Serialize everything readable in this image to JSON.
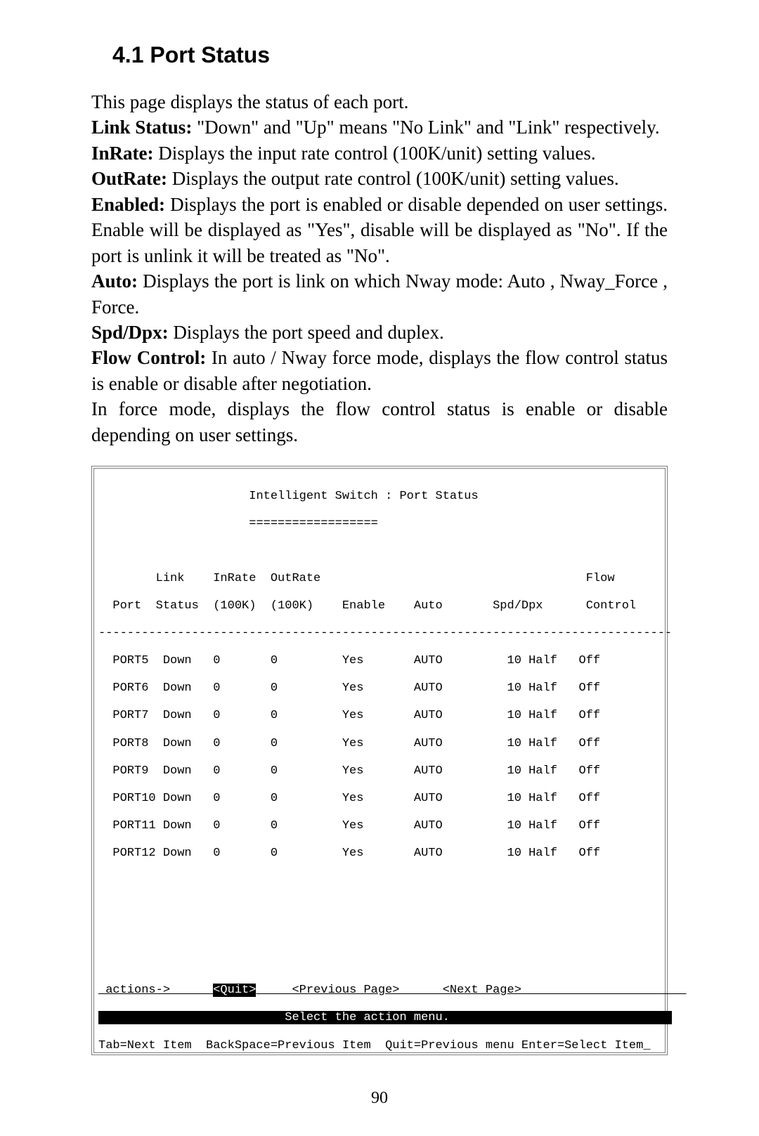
{
  "heading": "4.1 Port Status",
  "intro": "This page displays the status of each port.",
  "definitions": [
    {
      "term": "Link Status: ",
      "desc": "\"Down\" and \"Up\" means \"No Link\" and \"Link\" respectively."
    },
    {
      "term": "InRate: ",
      "desc": "Displays the input rate control (100K/unit) setting values."
    },
    {
      "term": "OutRate: ",
      "desc": "Displays the output rate control (100K/unit) setting values."
    },
    {
      "term": "Enabled: ",
      "desc": "Displays the port is enabled or disable depended on user settings. Enable will be displayed as \"Yes\", disable will be displayed as \"No\". If the port is unlink it will be treated as \"No\"."
    },
    {
      "term": "Auto: ",
      "desc": "Displays the port is link on which Nway mode: Auto , Nway_Force , Force."
    },
    {
      "term": "Spd/Dpx: ",
      "desc": "Displays the port speed and duplex."
    },
    {
      "term": "Flow Control: ",
      "desc": "In auto / Nway force mode, displays the flow control status is enable or disable after negotiation."
    }
  ],
  "tail_text": "In force mode, displays the flow control status is enable or disable depending on user settings.",
  "terminal": {
    "title": "Intelligent Switch : Port Status",
    "title_underline": "==================",
    "header1": "        Link    InRate  OutRate                                     Flow",
    "header2": "  Port  Status  (100K)  (100K)    Enable    Auto       Spd/Dpx      Control",
    "separator": "--------------------------------------------------------------------------------",
    "rows": [
      "  PORT5  Down   0       0         Yes       AUTO         10 Half   Off",
      "  PORT6  Down   0       0         Yes       AUTO         10 Half   Off",
      "  PORT7  Down   0       0         Yes       AUTO         10 Half   Off",
      "  PORT8  Down   0       0         Yes       AUTO         10 Half   Off",
      "  PORT9  Down   0       0         Yes       AUTO         10 Half   Off",
      "  PORT10 Down   0       0         Yes       AUTO         10 Half   Off",
      "  PORT11 Down   0       0         Yes       AUTO         10 Half   Off",
      "  PORT12 Down   0       0         Yes       AUTO         10 Half   Off"
    ],
    "actions_prefix": " actions->      ",
    "quit_label": "<Quit>",
    "actions_rest": "     <Previous Page>      <Next Page>",
    "select_msg": "Select the action menu.",
    "footer": "Tab=Next Item  BackSpace=Previous Item  Quit=Previous menu Enter=Select Item_"
  },
  "page_number": "90"
}
